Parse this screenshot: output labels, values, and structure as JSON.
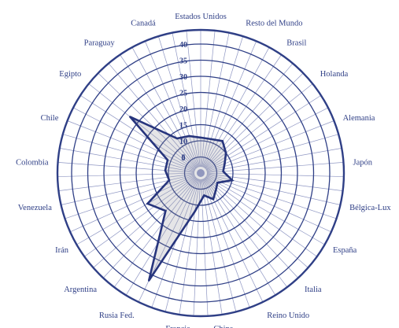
{
  "chart_data": {
    "type": "radar",
    "title": "",
    "categories": [
      "Estados Unidos",
      "Resto del Mundo",
      "Brasil",
      "Holanda",
      "Alemania",
      "Japón",
      "Bélgica-Lux",
      "España",
      "Italia",
      "Reino Unido",
      "China",
      "Francia",
      "Rusia Fed.",
      "Argentina",
      "Irán",
      "Venezuela",
      "Colombia",
      "Chile",
      "Egipto",
      "Paraguay",
      "Canadá"
    ],
    "ticks": [
      "0",
      "5",
      "10",
      "15",
      "20",
      "25",
      "30",
      "35",
      "40"
    ],
    "rlim": [
      0,
      40
    ],
    "series": [
      {
        "values": [
          11,
          11,
          12,
          10,
          8,
          7,
          10,
          6,
          7,
          9,
          7,
          12,
          37,
          16,
          19,
          10,
          11,
          11,
          28,
          13,
          12
        ]
      }
    ],
    "grid": true,
    "legend": "none"
  },
  "colors": {
    "ink": "#2f3f86",
    "spokes": "#8e96c3",
    "series": "#27357d"
  }
}
